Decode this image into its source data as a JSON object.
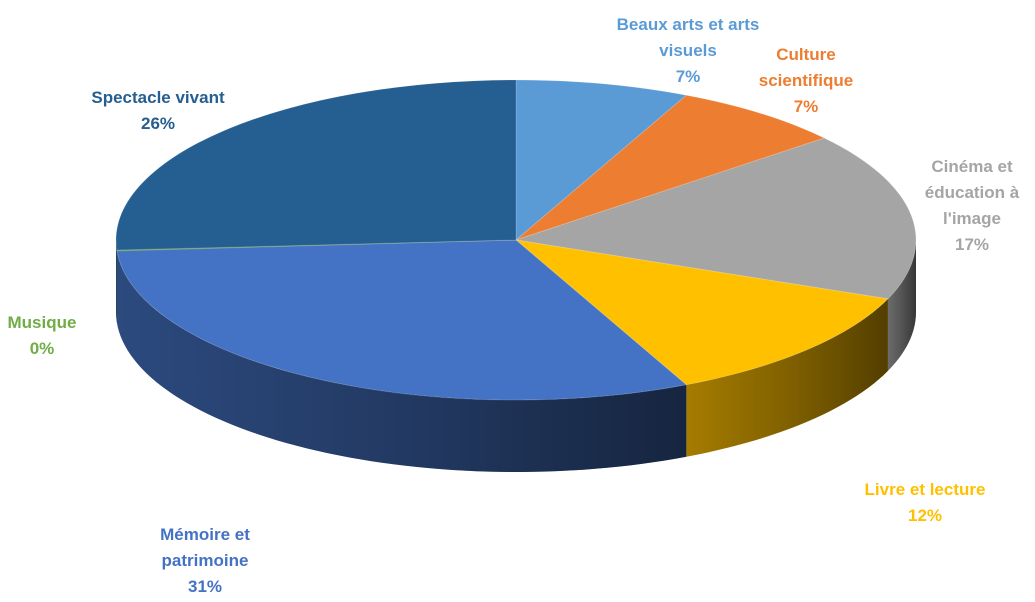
{
  "chart_data": {
    "type": "pie",
    "title": "",
    "slices": [
      {
        "label": "Beaux arts et arts visuels",
        "lines": [
          "Beaux arts et arts",
          "visuels"
        ],
        "value": 7,
        "percent_label": "7%",
        "color": "#5B9BD5"
      },
      {
        "label": "Culture scientifique",
        "lines": [
          "Culture",
          "scientifique"
        ],
        "value": 7,
        "percent_label": "7%",
        "color": "#ED7D31"
      },
      {
        "label": "Cinéma et éducation à l'image",
        "lines": [
          "Cinéma et",
          "éducation à",
          "l'image"
        ],
        "value": 17,
        "percent_label": "17%",
        "color": "#A5A5A5"
      },
      {
        "label": "Livre et lecture",
        "lines": [
          "Livre et lecture"
        ],
        "value": 12,
        "percent_label": "12%",
        "color": "#FFC000"
      },
      {
        "label": "Mémoire et patrimoine",
        "lines": [
          "Mémoire et",
          "patrimoine"
        ],
        "value": 31,
        "percent_label": "31%",
        "color": "#4472C4"
      },
      {
        "label": "Musique",
        "lines": [
          "Musique"
        ],
        "value": 0,
        "percent_label": "0%",
        "color": "#70AD47"
      },
      {
        "label": "Spectacle vivant",
        "lines": [
          "Spectacle vivant"
        ],
        "value": 26,
        "percent_label": "26%",
        "color": "#255E91"
      }
    ],
    "label_colors": {
      "Beaux arts et arts visuels": "#5B9BD5",
      "Culture scientifique": "#ED7D31",
      "Cinéma et éducation à l'image": "#A5A5A5",
      "Livre et lecture": "#FFC000",
      "Mémoire et patrimoine": "#4472C4",
      "Musique": "#70AD47",
      "Spectacle vivant": "#255E91"
    },
    "style": "3d-pie",
    "start_angle": "top, clockwise"
  }
}
